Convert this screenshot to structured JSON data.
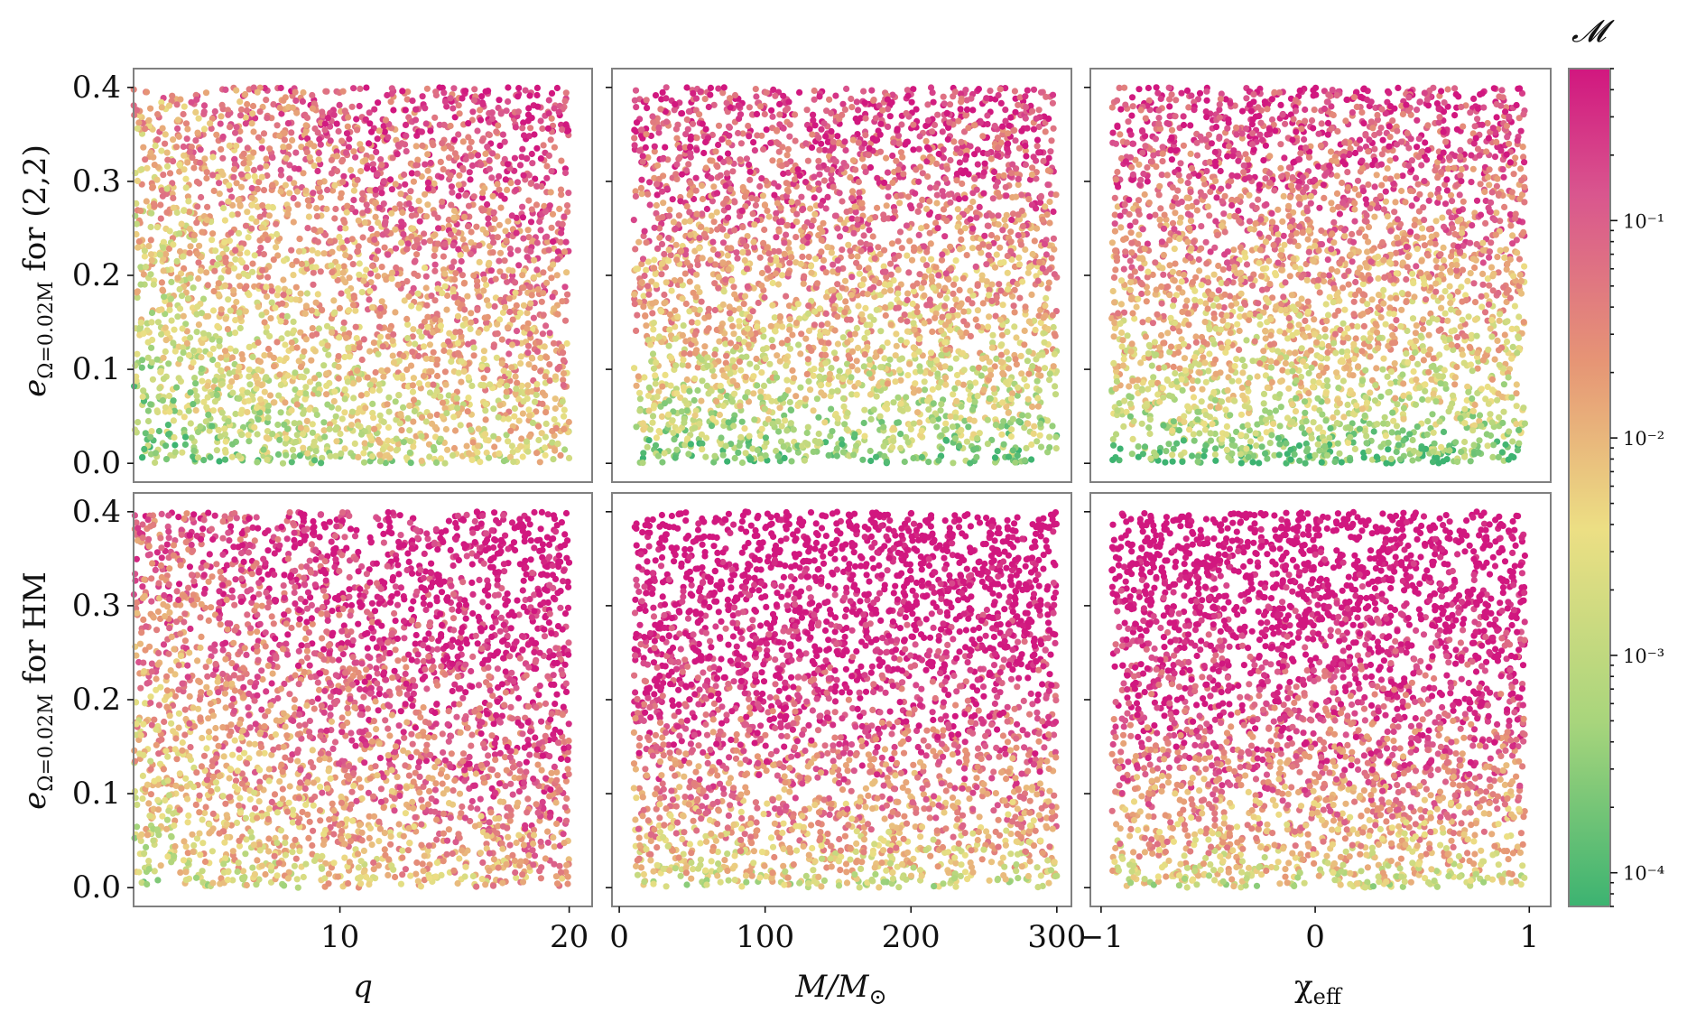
{
  "chart_data": {
    "type": "scatter",
    "layout": "2x3 grid with shared colorbar",
    "colorbar": {
      "label": "𝓜",
      "scale": "log",
      "range": [
        7e-05,
        0.5
      ],
      "ticks": [
        "10⁻¹",
        "10⁻²",
        "10⁻³",
        "10⁻⁴"
      ],
      "tick_values": [
        0.1,
        0.01,
        0.001,
        0.0001
      ],
      "colormap": [
        "#3cb371",
        "#a8d57c",
        "#ecdf84",
        "#e69575",
        "#d9568e",
        "#d1177f"
      ]
    },
    "rows": [
      {
        "ylabel": "e_{Ω=0.02M} for (2,2)",
        "ylabel_main": "e",
        "ylabel_sub": "Ω=0.02M",
        "ylabel_rest": " for (2,2)"
      },
      {
        "ylabel": "e_{Ω=0.02M} for HM",
        "ylabel_main": "e",
        "ylabel_sub": "Ω=0.02M",
        "ylabel_rest": " for HM"
      }
    ],
    "yaxis": {
      "ylim": [
        -0.02,
        0.42
      ],
      "ticks": [
        "0.0",
        "0.1",
        "0.2",
        "0.3",
        "0.4"
      ],
      "tick_values": [
        0.0,
        0.1,
        0.2,
        0.3,
        0.4
      ]
    },
    "columns": [
      {
        "xlabel": "q",
        "xlim": [
          1,
          21
        ],
        "ticks": [
          "10",
          "20"
        ],
        "tick_values": [
          10,
          20
        ],
        "data_range": [
          1,
          20
        ]
      },
      {
        "xlabel": "M/M⊙",
        "xlabel_main": "M/M",
        "xlabel_sym": "⊙",
        "xlim": [
          -5,
          310
        ],
        "ticks": [
          "0",
          "100",
          "200",
          "300"
        ],
        "tick_values": [
          0,
          100,
          200,
          300
        ],
        "data_range": [
          10,
          300
        ]
      },
      {
        "xlabel": "χeff",
        "xlabel_main": "χ",
        "xlabel_sub": "eff",
        "xlim": [
          -1.05,
          1.1
        ],
        "ticks": [
          "−1",
          "0",
          "1"
        ],
        "tick_values": [
          -1,
          0,
          1
        ],
        "data_range": [
          -0.95,
          0.98
        ]
      }
    ],
    "points_per_panel": 3200,
    "trend": "mismatch increases with eccentricity, with mass ratio q, and is larger for higher modes (HM)"
  }
}
